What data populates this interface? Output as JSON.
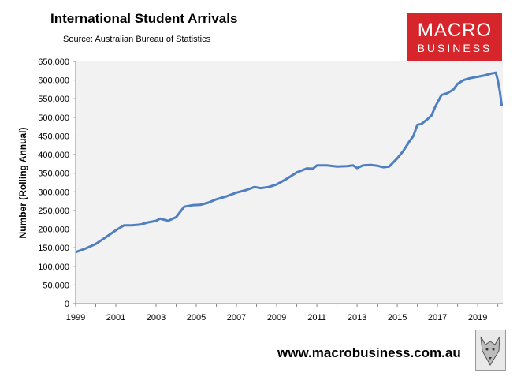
{
  "header": {
    "title": "International Student Arrivals",
    "source": "Source: Australian Bureau of Statistics"
  },
  "logo": {
    "line1": "MACRO",
    "line2": "BUSINESS"
  },
  "footer": {
    "url": "www.macrobusiness.com.au"
  },
  "colors": {
    "line": "#4f7fc0",
    "plot_bg": "#f2f2f2",
    "logo_bg": "#d7262b"
  },
  "icons": {
    "wolf": "wolf-logo-icon"
  },
  "chart_data": {
    "type": "line",
    "title": "International Student Arrivals",
    "subtitle": "Source: Australian Bureau of Statistics",
    "xlabel": "",
    "ylabel": "Number (Rolling Annual)",
    "xlim": [
      1999,
      2020.25
    ],
    "ylim": [
      0,
      650000
    ],
    "y_ticks": [
      0,
      50000,
      100000,
      150000,
      200000,
      250000,
      300000,
      350000,
      400000,
      450000,
      500000,
      550000,
      600000,
      650000
    ],
    "y_tick_labels": [
      "0",
      "50,000",
      "100,000",
      "150,000",
      "200,000",
      "250,000",
      "300,000",
      "350,000",
      "400,000",
      "450,000",
      "500,000",
      "550,000",
      "600,000",
      "650,000"
    ],
    "x_tick_labels": [
      "1999",
      "2001",
      "2003",
      "2005",
      "2007",
      "2009",
      "2011",
      "2013",
      "2015",
      "2017",
      "2019"
    ],
    "grid": false,
    "legend": "none",
    "series": [
      {
        "x": [
          1999.0,
          1999.5,
          2000.0,
          2000.5,
          2001.0,
          2001.4,
          2001.8,
          2002.2,
          2002.6,
          2003.0,
          2003.2,
          2003.6,
          2004.0,
          2004.4,
          2004.8,
          2005.2,
          2005.6,
          2006.0,
          2006.5,
          2007.0,
          2007.5,
          2007.9,
          2008.2,
          2008.6,
          2009.0,
          2009.5,
          2010.0,
          2010.5,
          2010.8,
          2011.0,
          2011.5,
          2012.0,
          2012.5,
          2012.8,
          2013.0,
          2013.3,
          2013.7,
          2014.0,
          2014.3,
          2014.6,
          2015.0,
          2015.3,
          2015.6,
          2015.8,
          2016.0,
          2016.2,
          2016.5,
          2016.7,
          2016.9,
          2017.2,
          2017.5,
          2017.8,
          2018.0,
          2018.3,
          2018.6,
          2018.9,
          2019.1,
          2019.3,
          2019.5,
          2019.7,
          2019.9,
          2020.0,
          2020.1,
          2020.2
        ],
        "values": [
          138000,
          148000,
          160000,
          178000,
          197000,
          210000,
          210000,
          212000,
          218000,
          222000,
          228000,
          222000,
          232000,
          260000,
          264000,
          265000,
          271000,
          280000,
          288000,
          298000,
          305000,
          313000,
          310000,
          313000,
          320000,
          335000,
          352000,
          363000,
          362000,
          371000,
          371000,
          368000,
          369000,
          371000,
          364000,
          371000,
          372000,
          370000,
          366000,
          368000,
          390000,
          410000,
          435000,
          450000,
          480000,
          482000,
          495000,
          505000,
          530000,
          560000,
          565000,
          575000,
          590000,
          600000,
          605000,
          608000,
          610000,
          612000,
          615000,
          618000,
          620000,
          600000,
          570000,
          530000
        ]
      }
    ]
  }
}
